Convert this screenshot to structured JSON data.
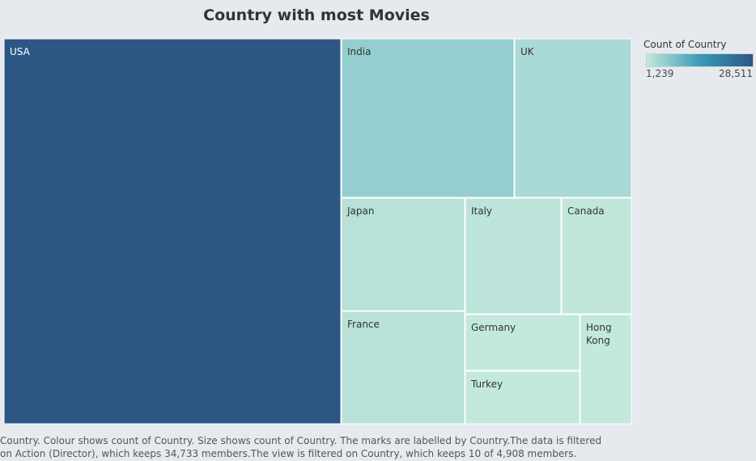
{
  "chart_data": {
    "type": "treemap",
    "title": "Country with most Movies",
    "measure": "Count of Country",
    "items": [
      {
        "name": "USA",
        "value": 28511
      },
      {
        "name": "India",
        "value": 5800
      },
      {
        "name": "UK",
        "value": 3800
      },
      {
        "name": "Japan",
        "value": 2450
      },
      {
        "name": "Italy",
        "value": 1930
      },
      {
        "name": "Canada",
        "value": 1450
      },
      {
        "name": "France",
        "value": 2350
      },
      {
        "name": "Germany",
        "value": 1250
      },
      {
        "name": "Turkey",
        "value": 1260
      },
      {
        "name": "Hong Kong",
        "value": 1239
      }
    ],
    "color_scale": {
      "min": 1239,
      "max": 28511,
      "min_label": "1,239",
      "max_label": "28,511",
      "min_color": "#c3e8dc",
      "mid_color": "#3a9bb8",
      "max_color": "#2c5784"
    }
  },
  "legend": {
    "title": "Count of Country",
    "min_label": "1,239",
    "max_label": "28,511"
  },
  "caption": "Country. Colour shows count of Country. Size shows count of Country. The marks are labelled by Country.The data is filtered on Action (Director), which keeps 34,733 members.The view is filtered on Country, which keeps 10 of 4,908 members."
}
